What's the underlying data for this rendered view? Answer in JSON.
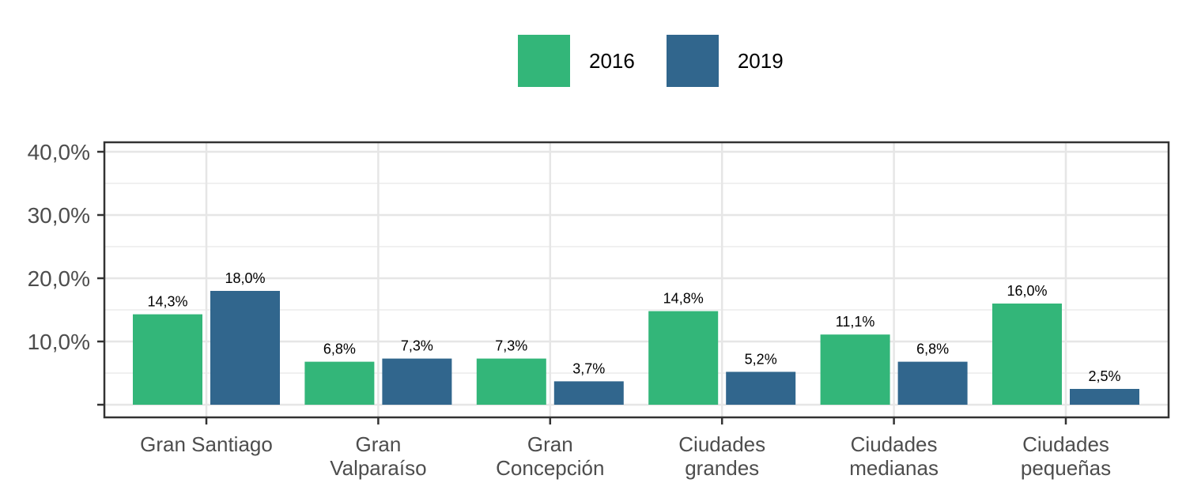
{
  "chart_data": {
    "type": "bar",
    "categories": [
      [
        "Gran Santiago"
      ],
      [
        "Gran",
        "Valparaíso"
      ],
      [
        "Gran",
        "Concepción"
      ],
      [
        "Ciudades",
        "grandes"
      ],
      [
        "Ciudades",
        "medianas"
      ],
      [
        "Ciudades",
        "pequeñas"
      ]
    ],
    "series": [
      {
        "name": "2016",
        "color": "#33b679",
        "values": [
          14.3,
          6.8,
          7.3,
          14.8,
          11.1,
          16.0
        ],
        "labels": [
          "14,3%",
          "6,8%",
          "7,3%",
          "14,8%",
          "11,1%",
          "16,0%"
        ]
      },
      {
        "name": "2019",
        "color": "#31668d",
        "values": [
          18.0,
          7.3,
          3.7,
          5.2,
          6.8,
          2.5
        ],
        "labels": [
          "18,0%",
          "7,3%",
          "3,7%",
          "5,2%",
          "6,8%",
          "2,5%"
        ]
      }
    ],
    "ylim": [
      -2,
      41.5
    ],
    "yticks": [
      0,
      10,
      20,
      30,
      40
    ],
    "ytick_labels": [
      "",
      "10,0%",
      "20,0%",
      "30,0%",
      "40,0%"
    ],
    "title": "",
    "xlabel": "",
    "ylabel": "",
    "grid": true,
    "legend_position": "top"
  }
}
